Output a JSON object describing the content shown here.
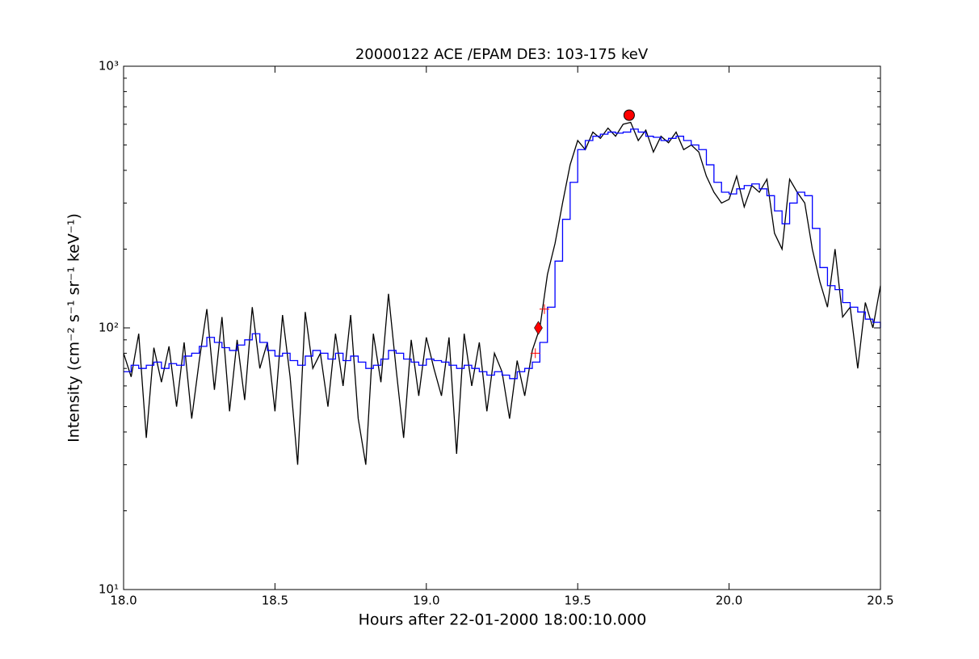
{
  "chart_data": {
    "type": "line",
    "title": "20000122 ACE /EPAM DE3: 103-175 keV",
    "xlabel": "Hours after 22-01-2000 18:00:10.000",
    "ylabel": "Intensity (cm⁻² s⁻¹ sr⁻¹ keV⁻¹)",
    "log_y": true,
    "xlim": [
      18.0,
      20.5
    ],
    "ylim": [
      10,
      1000
    ],
    "xticks": [
      {
        "value": 18,
        "label": "18.0"
      },
      18.5,
      {
        "value": 19,
        "label": "19.0"
      },
      19.5,
      {
        "value": 20,
        "label": "20.0"
      },
      20.5
    ],
    "yticks": [
      {
        "value": 10,
        "label": "10¹"
      },
      {
        "value": 100,
        "label": "10²"
      },
      {
        "value": 1000,
        "label": "10³"
      }
    ],
    "x": [
      18.0,
      18.025,
      18.05,
      18.075,
      18.1,
      18.125,
      18.15,
      18.175,
      18.2,
      18.225,
      18.25,
      18.275,
      18.3,
      18.325,
      18.35,
      18.375,
      18.4,
      18.425,
      18.45,
      18.475,
      18.5,
      18.525,
      18.55,
      18.575,
      18.6,
      18.625,
      18.65,
      18.675,
      18.7,
      18.725,
      18.75,
      18.775,
      18.8,
      18.825,
      18.85,
      18.875,
      18.9,
      18.925,
      18.95,
      18.975,
      19.0,
      19.025,
      19.05,
      19.075,
      19.1,
      19.125,
      19.15,
      19.175,
      19.2,
      19.225,
      19.25,
      19.275,
      19.3,
      19.325,
      19.35,
      19.375,
      19.4,
      19.425,
      19.45,
      19.475,
      19.5,
      19.525,
      19.55,
      19.575,
      19.6,
      19.625,
      19.65,
      19.675,
      19.7,
      19.725,
      19.75,
      19.775,
      19.8,
      19.825,
      19.85,
      19.875,
      19.9,
      19.925,
      19.95,
      19.975,
      20.0,
      20.025,
      20.05,
      20.075,
      20.1,
      20.125,
      20.15,
      20.175,
      20.2,
      20.225,
      20.25,
      20.275,
      20.3,
      20.325,
      20.35,
      20.375,
      20.4,
      20.425,
      20.45,
      20.475,
      20.5
    ],
    "series": [
      {
        "color": "#000000",
        "drawstyle": "line",
        "values": [
          80,
          65,
          95,
          38,
          84,
          62,
          85,
          50,
          88,
          45,
          75,
          118,
          58,
          110,
          48,
          90,
          53,
          120,
          70,
          88,
          48,
          112,
          65,
          30,
          115,
          70,
          80,
          50,
          95,
          60,
          112,
          45,
          30,
          95,
          62,
          135,
          70,
          38,
          90,
          55,
          92,
          70,
          55,
          92,
          33,
          95,
          60,
          88,
          48,
          80,
          68,
          45,
          75,
          55,
          82,
          100,
          160,
          210,
          300,
          420,
          520,
          480,
          560,
          530,
          580,
          540,
          600,
          610,
          520,
          570,
          470,
          540,
          510,
          560,
          480,
          500,
          470,
          380,
          330,
          300,
          310,
          380,
          290,
          350,
          330,
          370,
          230,
          200,
          370,
          330,
          300,
          200,
          150,
          120,
          200,
          110,
          120,
          70,
          125,
          100,
          145
        ]
      },
      {
        "color": "#0000ff",
        "drawstyle": "steps",
        "values": [
          68,
          72,
          70,
          72,
          74,
          70,
          73,
          72,
          78,
          80,
          85,
          92,
          88,
          84,
          82,
          86,
          90,
          95,
          88,
          82,
          78,
          80,
          75,
          72,
          78,
          82,
          80,
          76,
          80,
          75,
          78,
          74,
          70,
          72,
          76,
          82,
          80,
          76,
          74,
          72,
          76,
          75,
          74,
          72,
          70,
          72,
          70,
          68,
          66,
          68,
          66,
          64,
          68,
          70,
          74,
          88,
          120,
          180,
          260,
          360,
          480,
          520,
          540,
          550,
          560,
          555,
          560,
          575,
          560,
          540,
          535,
          520,
          530,
          540,
          520,
          500,
          480,
          420,
          360,
          330,
          325,
          340,
          350,
          355,
          340,
          320,
          280,
          250,
          300,
          330,
          320,
          240,
          170,
          145,
          140,
          125,
          120,
          115,
          108,
          105,
          100
        ]
      }
    ],
    "markers": [
      {
        "x": 19.37,
        "y": 100,
        "shape": "diamond",
        "color": "#ff0000"
      },
      {
        "x": 19.67,
        "y": 650,
        "shape": "circle",
        "color": "#ff0000"
      },
      {
        "x": 19.39,
        "y": 118,
        "shape": "plus",
        "color": "#ff0000"
      },
      {
        "x": 19.36,
        "y": 80,
        "shape": "plus",
        "color": "#ff0000"
      }
    ]
  }
}
